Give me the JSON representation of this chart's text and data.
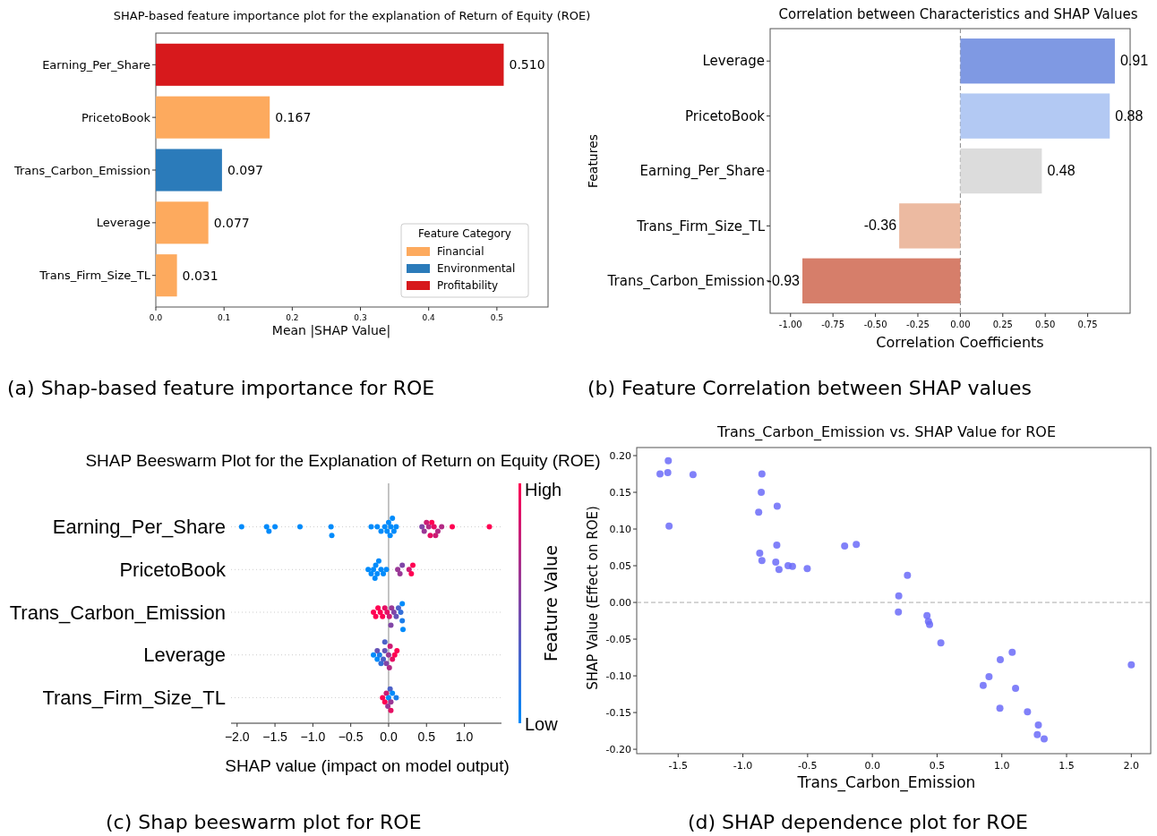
{
  "chart_data": [
    {
      "type": "bar",
      "orientation": "horizontal",
      "title": "SHAP-based feature importance plot for the explanation of Return of Equity (ROE)",
      "xlabel": "Mean |SHAP Value|",
      "legend_title": "Feature Category",
      "legend": "bottom right",
      "categories": [
        "Earning_Per_Share",
        "PricetoBook",
        "Trans_Carbon_Emission",
        "Leverage",
        "Trans_Firm_Size_TL"
      ],
      "series": [
        {
          "name": "Financial",
          "color": "#fdaa5e",
          "values": [
            null,
            0.167,
            null,
            0.077,
            0.031
          ],
          "value_labels": [
            null,
            "0.167",
            null,
            "0.077",
            "0.031"
          ]
        },
        {
          "name": "Environmental",
          "color": "#2b7bba",
          "values": [
            null,
            null,
            0.097,
            null,
            null
          ],
          "value_labels": [
            null,
            null,
            "0.097",
            null,
            null
          ]
        },
        {
          "name": "Profitability",
          "color": "#d7191c",
          "values": [
            0.51,
            null,
            null,
            null,
            null
          ],
          "value_labels": [
            "0.510",
            null,
            null,
            null,
            null
          ]
        }
      ],
      "xlim": [
        0,
        0.575
      ],
      "xticks": [
        {
          "value": 0,
          "label": "0.0"
        },
        0.1,
        0.2,
        0.3,
        0.4,
        0.5
      ],
      "annotations": [
        "(a) Shap-based feature importance for ROE"
      ]
    },
    {
      "type": "bar",
      "orientation": "horizontal",
      "title": "Correlation between Characteristics and SHAP Values",
      "xlabel": "Correlation Coefficients",
      "ylabel": "Features",
      "categories": [
        "Leverage",
        "PricetoBook",
        "Earning_Per_Share",
        "Trans_Firm_Size_TL",
        "Trans_Carbon_Emission"
      ],
      "values": [
        0.91,
        0.88,
        0.48,
        -0.36,
        -0.93
      ],
      "colors": [
        "#7f99e3",
        "#b3c9f3",
        "#dcdcdc",
        "#ecbaa1",
        "#d67e6a"
      ],
      "data_labels": true,
      "xlim": [
        -1.12,
        1.0
      ],
      "xticks": [
        {
          "value": -1,
          "label": "-1.00"
        },
        {
          "value": -0.75,
          "label": "-0.75"
        },
        {
          "value": -0.5,
          "label": "-0.50"
        },
        {
          "value": -0.25,
          "label": "-0.25"
        },
        {
          "value": 0,
          "label": "0.00"
        },
        {
          "value": 0.25,
          "label": "0.25"
        },
        {
          "value": 0.5,
          "label": "0.50"
        },
        {
          "value": 0.75,
          "label": "0.75"
        }
      ],
      "ref_lines": [
        {
          "axis": "x",
          "value": 0,
          "color": "#888888",
          "line_style": "dashed"
        }
      ],
      "annotations": [
        "(b) Feature Correlation between SHAP values"
      ]
    },
    {
      "type": "scatter",
      "orientation": "horizontal",
      "title": "SHAP Beeswarm Plot for the Explanation of Return on Equity (ROE)",
      "xlabel": "SHAP value (impact on model output)",
      "clabel": "Feature Value",
      "categories": [
        "Earning_Per_Share",
        "PricetoBook",
        "Trans_Carbon_Emission",
        "Leverage",
        "Trans_Firm_Size_TL"
      ],
      "grid": "y",
      "marker": "circle",
      "series": [
        {
          "values": [
            -1.94,
            -1.61,
            -1.58,
            -1.5,
            -1.17,
            -0.76,
            -0.75,
            -0.23,
            -0.15,
            -0.1,
            -0.05,
            -0.02,
            0.0,
            0.02,
            0.03,
            0.05,
            0.07,
            0.1,
            0.44,
            0.47,
            0.5,
            0.53,
            0.55,
            0.57,
            0.6,
            0.62,
            0.65,
            0.7,
            0.84,
            1.33
          ],
          "x": [
            "Earning_Per_Share",
            "Earning_Per_Share",
            "Earning_Per_Share",
            "Earning_Per_Share",
            "Earning_Per_Share",
            "Earning_Per_Share",
            "Earning_Per_Share",
            "Earning_Per_Share",
            "Earning_Per_Share",
            "Earning_Per_Share",
            "Earning_Per_Share",
            "Earning_Per_Share",
            "Earning_Per_Share",
            "Earning_Per_Share",
            "Earning_Per_Share",
            "Earning_Per_Share",
            "Earning_Per_Share",
            "Earning_Per_Share",
            "Earning_Per_Share",
            "Earning_Per_Share",
            "Earning_Per_Share",
            "Earning_Per_Share",
            "Earning_Per_Share",
            "Earning_Per_Share",
            "Earning_Per_Share",
            "Earning_Per_Share",
            "Earning_Per_Share",
            "Earning_Per_Share",
            "Earning_Per_Share",
            "Earning_Per_Share"
          ],
          "colors": [
            "#008bfb",
            "#008bfb",
            "#008bfb",
            "#008bfb",
            "#008bfb",
            "#008bfb",
            "#008bfb",
            "#008bfb",
            "#008bfb",
            "#008bfb",
            "#008bfb",
            "#008bfb",
            "#008bfb",
            "#008bfb",
            "#008bfb",
            "#008bfb",
            "#008bfb",
            "#008bfb",
            "#8046a7",
            "#993896",
            "#cc1c74",
            "#b32a85",
            "#e60e63",
            "#ff0052",
            "#e60e63",
            "#cc1c74",
            "#b32a85",
            "#b32a85",
            "#ff0052",
            "#ff0052"
          ]
        },
        {
          "values": [
            -0.27,
            -0.23,
            -0.2,
            -0.18,
            -0.17,
            -0.15,
            -0.13,
            -0.1,
            -0.07,
            -0.03,
            0.12,
            0.15,
            0.18,
            0.27,
            0.3,
            0.32
          ],
          "x": [
            "PricetoBook",
            "PricetoBook",
            "PricetoBook",
            "PricetoBook",
            "PricetoBook",
            "PricetoBook",
            "PricetoBook",
            "PricetoBook",
            "PricetoBook",
            "PricetoBook",
            "PricetoBook",
            "PricetoBook",
            "PricetoBook",
            "PricetoBook",
            "PricetoBook",
            "PricetoBook"
          ],
          "colors": [
            "#008bfb",
            "#008bfb",
            "#008bfb",
            "#008bfb",
            "#008bfb",
            "#008bfb",
            "#008bfb",
            "#008bfb",
            "#008bfb",
            "#008bfb",
            "#993896",
            "#993896",
            "#8046a7",
            "#cc1c74",
            "#ff0052",
            "#ff0052"
          ]
        },
        {
          "values": [
            -0.2,
            -0.17,
            -0.14,
            -0.11,
            -0.08,
            -0.05,
            -0.02,
            0.01,
            0.04,
            0.03,
            0.07,
            0.1,
            0.13,
            0.16,
            0.18,
            0.18,
            0.19
          ],
          "x": [
            "Trans_Carbon_Emission",
            "Trans_Carbon_Emission",
            "Trans_Carbon_Emission",
            "Trans_Carbon_Emission",
            "Trans_Carbon_Emission",
            "Trans_Carbon_Emission",
            "Trans_Carbon_Emission",
            "Trans_Carbon_Emission",
            "Trans_Carbon_Emission",
            "Trans_Carbon_Emission",
            "Trans_Carbon_Emission",
            "Trans_Carbon_Emission",
            "Trans_Carbon_Emission",
            "Trans_Carbon_Emission",
            "Trans_Carbon_Emission",
            "Trans_Carbon_Emission",
            "Trans_Carbon_Emission"
          ],
          "colors": [
            "#ff0052",
            "#ff0052",
            "#ff0052",
            "#ff0052",
            "#ff0052",
            "#e60e63",
            "#e60e63",
            "#cc1c74",
            "#993896",
            "#8046a7",
            "#8046a7",
            "#6653b7",
            "#4d61c8",
            "#336fd9",
            "#1a7dea",
            "#008bfb",
            "#008bfb"
          ]
        },
        {
          "values": [
            -0.2,
            -0.15,
            -0.12,
            -0.1,
            -0.07,
            -0.05,
            -0.03,
            0.0,
            0.02,
            0.05,
            0.08,
            0.11,
            -0.15,
            -0.05,
            0.01
          ],
          "x": [
            "Leverage",
            "Leverage",
            "Leverage",
            "Leverage",
            "Leverage",
            "Leverage",
            "Leverage",
            "Leverage",
            "Leverage",
            "Leverage",
            "Leverage",
            "Leverage",
            "Leverage",
            "Leverage",
            "Leverage"
          ],
          "colors": [
            "#008bfb",
            "#008bfb",
            "#1a7dea",
            "#336fd9",
            "#4d61c8",
            "#6653b7",
            "#8046a7",
            "#993896",
            "#cc1c74",
            "#e60e63",
            "#ff0052",
            "#ff0052",
            "#6653b7",
            "#4d61c8",
            "#b32a85"
          ]
        },
        {
          "values": [
            -0.08,
            -0.05,
            -0.03,
            -0.01,
            0.0,
            0.02,
            0.03,
            0.05,
            0.1,
            0.03
          ],
          "x": [
            "Trans_Firm_Size_TL",
            "Trans_Firm_Size_TL",
            "Trans_Firm_Size_TL",
            "Trans_Firm_Size_TL",
            "Trans_Firm_Size_TL",
            "Trans_Firm_Size_TL",
            "Trans_Firm_Size_TL",
            "Trans_Firm_Size_TL",
            "Trans_Firm_Size_TL",
            "Trans_Firm_Size_TL"
          ],
          "colors": [
            "#ff0052",
            "#ff0052",
            "#cc1c74",
            "#993896",
            "#008bfb",
            "#4d61c8",
            "#993896",
            "#008bfb",
            "#1a7dea",
            "#e60e63"
          ]
        }
      ],
      "xlim": [
        -2.08,
        1.49
      ],
      "xticks": [
        {
          "value": -2,
          "label": "−2.0"
        },
        {
          "value": -1.5,
          "label": "−1.5"
        },
        {
          "value": -1,
          "label": "−1.0"
        },
        {
          "value": -0.5,
          "label": "−0.5"
        },
        {
          "value": 0,
          "label": "0.0"
        },
        {
          "value": 0.5,
          "label": "0.5"
        },
        {
          "value": 1,
          "label": "1.0"
        }
      ],
      "ref_lines": [
        {
          "axis": "x",
          "value": 0,
          "color": "#888888"
        }
      ],
      "annotations": [
        "(c) Shap beeswarm plot for ROE",
        "High",
        "Low"
      ]
    },
    {
      "type": "scatter",
      "title": "Trans_Carbon_Emission vs. SHAP Value for ROE",
      "xlabel": "Trans_Carbon_Emission",
      "ylabel": "SHAP Value (Effect on ROE)",
      "marker": "circle",
      "series": [
        {
          "color": "#6b6bf8",
          "x": [
            -1.64,
            -1.576,
            -1.58,
            -1.385,
            -1.57,
            -0.853,
            -0.858,
            -0.735,
            -0.878,
            -0.738,
            -0.87,
            -0.853,
            -0.746,
            -0.721,
            -0.651,
            -0.617,
            -0.503,
            -0.214,
            -0.124,
            0.271,
            0.204,
            0.201,
            0.422,
            0.433,
            0.442,
            0.529,
            0.856,
            0.901,
            0.988,
            1.08,
            1.106,
            0.985,
            1.198,
            1.282,
            1.274,
            1.327,
            2.0
          ],
          "values": [
            0.175,
            0.193,
            0.177,
            0.174,
            0.104,
            0.175,
            0.15,
            0.131,
            0.123,
            0.078,
            0.067,
            0.057,
            0.055,
            0.045,
            0.05,
            0.049,
            0.046,
            0.077,
            0.079,
            0.037,
            0.009,
            -0.013,
            -0.018,
            -0.026,
            -0.03,
            -0.055,
            -0.113,
            -0.101,
            -0.078,
            -0.068,
            -0.117,
            -0.144,
            -0.149,
            -0.167,
            -0.18,
            -0.186,
            -0.085
          ]
        }
      ],
      "xlim": [
        -1.82,
        2.15
      ],
      "xticks": [
        -1.5,
        {
          "value": -1,
          "label": "-1.0"
        },
        -0.5,
        {
          "value": 0,
          "label": "0.0"
        },
        0.5,
        {
          "value": 1,
          "label": "1.0"
        },
        1.5,
        {
          "value": 2,
          "label": "2.0"
        }
      ],
      "ylim": [
        -0.206,
        0.211
      ],
      "yticks": [
        {
          "value": -0.2,
          "label": "-0.20"
        },
        {
          "value": -0.15,
          "label": "-0.15"
        },
        {
          "value": -0.1,
          "label": "-0.10"
        },
        {
          "value": -0.05,
          "label": "-0.05"
        },
        {
          "value": 0,
          "label": "0.00"
        },
        {
          "value": 0.05,
          "label": "0.05"
        },
        {
          "value": 0.1,
          "label": "0.10"
        },
        {
          "value": 0.15,
          "label": "0.15"
        },
        {
          "value": 0.2,
          "label": "0.20"
        }
      ],
      "ref_lines": [
        {
          "axis": "y",
          "value": 0,
          "color": "#aaaaaa",
          "line_style": "dashed"
        }
      ],
      "annotations": [
        "(d) SHAP dependence plot for ROE"
      ]
    }
  ]
}
